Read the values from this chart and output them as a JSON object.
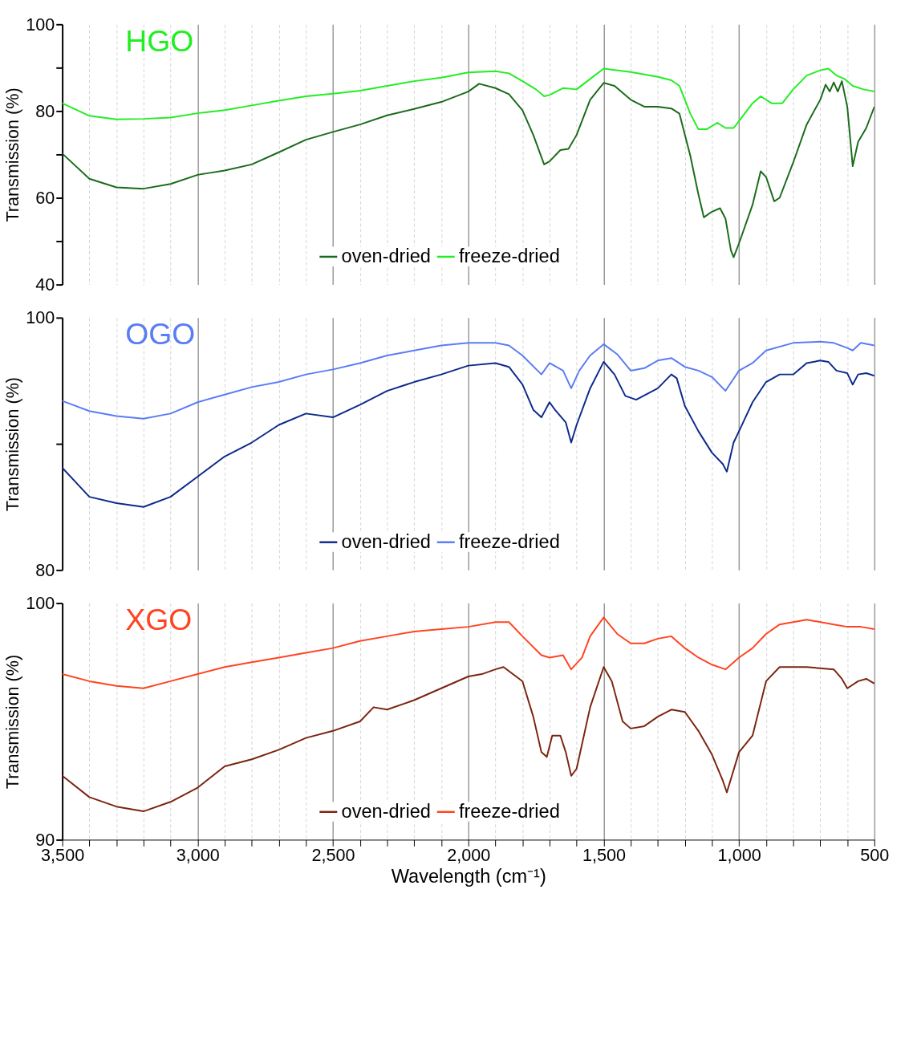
{
  "chart_data": [
    {
      "type": "line",
      "title": "HGO",
      "ylabel": "Transmission (%)",
      "xlim": [
        3500,
        500
      ],
      "ylim": [
        40,
        100
      ],
      "yticks": [
        100,
        {
          "value": 90,
          "label": null
        },
        80,
        {
          "value": 70,
          "label": null
        },
        60,
        {
          "value": 50,
          "label": null
        },
        40
      ],
      "tick_labels": "y",
      "grid": "x",
      "legend": "bottom",
      "xticks": [
        3500,
        {
          "value": 3400,
          "label": null
        },
        {
          "value": 3300,
          "label": null
        },
        {
          "value": 3200,
          "label": null
        },
        {
          "value": 3100,
          "label": null
        },
        3000,
        {
          "value": 2900,
          "label": null
        },
        {
          "value": 2800,
          "label": null
        },
        {
          "value": 2700,
          "label": null
        },
        {
          "value": 2600,
          "label": null
        },
        2500,
        {
          "value": 2400,
          "label": null
        },
        {
          "value": 2300,
          "label": null
        },
        {
          "value": 2200,
          "label": null
        },
        {
          "value": 2100,
          "label": null
        },
        2000,
        {
          "value": 1900,
          "label": null
        },
        {
          "value": 1800,
          "label": null
        },
        {
          "value": 1700,
          "label": null
        },
        {
          "value": 1600,
          "label": null
        },
        1500,
        {
          "value": 1400,
          "label": null
        },
        {
          "value": 1300,
          "label": null
        },
        {
          "value": 1200,
          "label": null
        },
        {
          "value": 1100,
          "label": null
        },
        1000,
        {
          "value": 900,
          "label": null
        },
        {
          "value": 800,
          "label": null
        },
        {
          "value": 700,
          "label": null
        },
        {
          "value": 600,
          "label": null
        },
        500
      ],
      "series": [
        {
          "name": "oven-dried",
          "color": "#1a6b1a",
          "x": [
            3500,
            3400,
            3300,
            3200,
            3100,
            3000,
            2900,
            2800,
            2700,
            2600,
            2500,
            2400,
            2300,
            2200,
            2100,
            2000,
            1960,
            1900,
            1850,
            1800,
            1760,
            1720,
            1700,
            1660,
            1630,
            1600,
            1550,
            1500,
            1460,
            1400,
            1350,
            1300,
            1250,
            1220,
            1180,
            1150,
            1130,
            1100,
            1070,
            1050,
            1030,
            1020,
            1000,
            950,
            920,
            900,
            870,
            850,
            800,
            750,
            700,
            680,
            665,
            650,
            635,
            620,
            600,
            580,
            560,
            530,
            500
          ],
          "values": [
            70.2,
            64.4,
            62.4,
            62.1,
            63.2,
            65.3,
            66.3,
            67.7,
            70.5,
            73.4,
            75.2,
            76.9,
            79,
            80.5,
            82.1,
            84.5,
            86.3,
            85.3,
            83.9,
            80.2,
            74.5,
            67.7,
            68.4,
            71,
            71.3,
            74.5,
            82.6,
            86.5,
            85.8,
            82.6,
            81,
            81,
            80.6,
            79.4,
            69.7,
            60.8,
            55.5,
            56.8,
            57.6,
            55.2,
            47.9,
            46.3,
            49.5,
            58.4,
            66.1,
            64.8,
            59.2,
            60,
            68.1,
            76.9,
            82.6,
            86.1,
            84.5,
            86.6,
            84.5,
            86.9,
            81,
            67.3,
            72.9,
            76.1,
            81
          ]
        },
        {
          "name": "freeze-dried",
          "color": "#22ee22",
          "x": [
            3500,
            3400,
            3300,
            3200,
            3100,
            3000,
            2900,
            2800,
            2700,
            2600,
            2500,
            2400,
            2300,
            2200,
            2100,
            2000,
            1900,
            1850,
            1800,
            1750,
            1720,
            1700,
            1650,
            1600,
            1550,
            1500,
            1400,
            1300,
            1250,
            1220,
            1180,
            1150,
            1120,
            1080,
            1050,
            1020,
            1000,
            950,
            920,
            880,
            840,
            800,
            750,
            700,
            670,
            640,
            610,
            580,
            540,
            500
          ],
          "values": [
            81.8,
            78.9,
            78.1,
            78.2,
            78.5,
            79.5,
            80.2,
            81.3,
            82.4,
            83.4,
            84,
            84.7,
            85.8,
            86.9,
            87.7,
            88.9,
            89.2,
            88.7,
            86.9,
            85,
            83.4,
            83.7,
            85.3,
            85,
            87.4,
            89.8,
            89,
            87.9,
            87.1,
            85.8,
            79.4,
            75.8,
            75.8,
            77.3,
            76.1,
            76.1,
            77.7,
            81.8,
            83.4,
            81.8,
            81.8,
            85,
            88.2,
            89.4,
            89.8,
            88.2,
            87.4,
            85.8,
            85,
            84.5
          ]
        }
      ]
    },
    {
      "type": "line",
      "title": "OGO",
      "ylabel": "Transmission (%)",
      "xlim": [
        3500,
        500
      ],
      "ylim": [
        80,
        100
      ],
      "yticks": [
        100,
        {
          "value": 90,
          "label": null
        },
        80
      ],
      "tick_labels": "y",
      "grid": "x",
      "legend": "bottom",
      "xticks": [
        3500,
        {
          "value": 3400,
          "label": null
        },
        {
          "value": 3300,
          "label": null
        },
        {
          "value": 3200,
          "label": null
        },
        {
          "value": 3100,
          "label": null
        },
        3000,
        {
          "value": 2900,
          "label": null
        },
        {
          "value": 2800,
          "label": null
        },
        {
          "value": 2700,
          "label": null
        },
        {
          "value": 2600,
          "label": null
        },
        2500,
        {
          "value": 2400,
          "label": null
        },
        {
          "value": 2300,
          "label": null
        },
        {
          "value": 2200,
          "label": null
        },
        {
          "value": 2100,
          "label": null
        },
        2000,
        {
          "value": 1900,
          "label": null
        },
        {
          "value": 1800,
          "label": null
        },
        {
          "value": 1700,
          "label": null
        },
        {
          "value": 1600,
          "label": null
        },
        1500,
        {
          "value": 1400,
          "label": null
        },
        {
          "value": 1300,
          "label": null
        },
        {
          "value": 1200,
          "label": null
        },
        {
          "value": 1100,
          "label": null
        },
        1000,
        {
          "value": 900,
          "label": null
        },
        {
          "value": 800,
          "label": null
        },
        {
          "value": 700,
          "label": null
        },
        {
          "value": 600,
          "label": null
        },
        500
      ],
      "series": [
        {
          "name": "oven-dried",
          "color": "#0d2a8a",
          "x": [
            3500,
            3400,
            3300,
            3200,
            3100,
            3000,
            2900,
            2800,
            2700,
            2600,
            2500,
            2400,
            2300,
            2200,
            2100,
            2000,
            1900,
            1850,
            1800,
            1760,
            1730,
            1700,
            1680,
            1640,
            1620,
            1600,
            1550,
            1500,
            1460,
            1420,
            1380,
            1300,
            1250,
            1230,
            1200,
            1150,
            1100,
            1060,
            1045,
            1020,
            1000,
            950,
            900,
            850,
            800,
            750,
            700,
            670,
            640,
            600,
            580,
            560,
            530,
            500
          ],
          "values": [
            88.1,
            85.8,
            85.3,
            85,
            85.8,
            87.4,
            89,
            90.1,
            91.5,
            92.4,
            92.1,
            93.1,
            94.2,
            94.9,
            95.5,
            96.2,
            96.4,
            96.1,
            94.7,
            92.7,
            92.1,
            93.3,
            92.7,
            91.7,
            90.1,
            91.5,
            94.4,
            96.5,
            95.5,
            93.8,
            93.5,
            94.4,
            95.5,
            95.2,
            93,
            91,
            89.3,
            88.4,
            87.8,
            90.1,
            91,
            93.3,
            94.9,
            95.5,
            95.5,
            96.4,
            96.6,
            96.5,
            95.8,
            95.6,
            94.7,
            95.5,
            95.6,
            95.4
          ]
        },
        {
          "name": "freeze-dried",
          "color": "#5a7cf5",
          "x": [
            3500,
            3400,
            3300,
            3200,
            3100,
            3000,
            2900,
            2800,
            2700,
            2600,
            2500,
            2400,
            2300,
            2200,
            2100,
            2000,
            1900,
            1850,
            1800,
            1730,
            1700,
            1650,
            1620,
            1590,
            1550,
            1500,
            1450,
            1400,
            1350,
            1300,
            1250,
            1200,
            1150,
            1100,
            1050,
            1000,
            950,
            900,
            800,
            700,
            650,
            600,
            580,
            550,
            500
          ],
          "values": [
            93.4,
            92.6,
            92.2,
            92,
            92.4,
            93.3,
            93.9,
            94.5,
            94.9,
            95.5,
            95.9,
            96.4,
            97,
            97.4,
            97.8,
            98,
            98,
            97.8,
            97,
            95.5,
            96.4,
            95.8,
            94.4,
            95.8,
            97,
            97.9,
            97.1,
            95.8,
            96,
            96.6,
            96.8,
            96.1,
            95.8,
            95.3,
            94.2,
            95.8,
            96.4,
            97.4,
            98,
            98.1,
            98,
            97.6,
            97.4,
            98,
            97.8
          ]
        }
      ]
    },
    {
      "type": "line",
      "title": "XGO",
      "ylabel": "Transmission (%)",
      "xlabel": "Wavelength (cm⁻¹)",
      "xlim": [
        3500,
        500
      ],
      "ylim": [
        90,
        100
      ],
      "yticks": [
        100,
        90
      ],
      "grid": "x",
      "legend": "bottom",
      "xticks": [
        {
          "value": 3500,
          "label": "3,500"
        },
        {
          "value": 3400,
          "label": null
        },
        {
          "value": 3300,
          "label": null
        },
        {
          "value": 3200,
          "label": null
        },
        {
          "value": 3100,
          "label": null
        },
        {
          "value": 3000,
          "label": "3,000"
        },
        {
          "value": 2900,
          "label": null
        },
        {
          "value": 2800,
          "label": null
        },
        {
          "value": 2700,
          "label": null
        },
        {
          "value": 2600,
          "label": null
        },
        {
          "value": 2500,
          "label": "2,500"
        },
        {
          "value": 2400,
          "label": null
        },
        {
          "value": 2300,
          "label": null
        },
        {
          "value": 2200,
          "label": null
        },
        {
          "value": 2100,
          "label": null
        },
        {
          "value": 2000,
          "label": "2,000"
        },
        {
          "value": 1900,
          "label": null
        },
        {
          "value": 1800,
          "label": null
        },
        {
          "value": 1700,
          "label": null
        },
        {
          "value": 1600,
          "label": null
        },
        {
          "value": 1500,
          "label": "1,500"
        },
        {
          "value": 1400,
          "label": null
        },
        {
          "value": 1300,
          "label": null
        },
        {
          "value": 1200,
          "label": null
        },
        {
          "value": 1100,
          "label": null
        },
        {
          "value": 1000,
          "label": "1,000"
        },
        {
          "value": 900,
          "label": null
        },
        {
          "value": 800,
          "label": null
        },
        {
          "value": 700,
          "label": null
        },
        {
          "value": 600,
          "label": null
        },
        {
          "value": 500,
          "label": "500"
        }
      ],
      "series": [
        {
          "name": "oven-dried",
          "color": "#7a2510",
          "x": [
            3500,
            3400,
            3300,
            3200,
            3100,
            3000,
            2900,
            2800,
            2700,
            2600,
            2500,
            2400,
            2350,
            2300,
            2200,
            2100,
            2000,
            1950,
            1900,
            1870,
            1800,
            1760,
            1730,
            1710,
            1690,
            1660,
            1640,
            1620,
            1600,
            1550,
            1500,
            1470,
            1430,
            1400,
            1350,
            1300,
            1250,
            1200,
            1150,
            1100,
            1060,
            1045,
            1000,
            950,
            900,
            850,
            750,
            650,
            620,
            600,
            560,
            530,
            500
          ],
          "values": [
            92.7,
            91.8,
            91.4,
            91.2,
            91.6,
            92.2,
            93.1,
            93.4,
            93.8,
            94.3,
            94.6,
            95,
            95.6,
            95.5,
            95.9,
            96.4,
            96.9,
            97,
            97.2,
            97.3,
            96.7,
            95.2,
            93.7,
            93.5,
            94.4,
            94.4,
            93.7,
            92.7,
            93,
            95.6,
            97.3,
            96.7,
            95,
            94.7,
            94.8,
            95.2,
            95.5,
            95.4,
            94.6,
            93.6,
            92.5,
            92,
            93.7,
            94.4,
            96.7,
            97.3,
            97.3,
            97.2,
            96.8,
            96.4,
            96.7,
            96.8,
            96.6
          ]
        },
        {
          "name": "freeze-dried",
          "color": "#ff4422",
          "x": [
            3500,
            3400,
            3300,
            3200,
            3100,
            3000,
            2900,
            2800,
            2700,
            2600,
            2500,
            2400,
            2300,
            2200,
            2100,
            2000,
            1900,
            1850,
            1800,
            1730,
            1700,
            1650,
            1620,
            1580,
            1550,
            1500,
            1450,
            1400,
            1350,
            1300,
            1250,
            1200,
            1150,
            1100,
            1050,
            1000,
            950,
            900,
            850,
            750,
            650,
            600,
            550,
            500
          ],
          "values": [
            97,
            96.7,
            96.5,
            96.4,
            96.7,
            97,
            97.3,
            97.5,
            97.7,
            97.9,
            98.1,
            98.4,
            98.6,
            98.8,
            98.9,
            99,
            99.2,
            99.2,
            98.6,
            97.8,
            97.7,
            97.8,
            97.2,
            97.7,
            98.6,
            99.4,
            98.7,
            98.3,
            98.3,
            98.5,
            98.6,
            98.1,
            97.7,
            97.4,
            97.2,
            97.7,
            98.1,
            98.7,
            99.1,
            99.3,
            99.1,
            99,
            99,
            98.9
          ]
        }
      ]
    }
  ]
}
